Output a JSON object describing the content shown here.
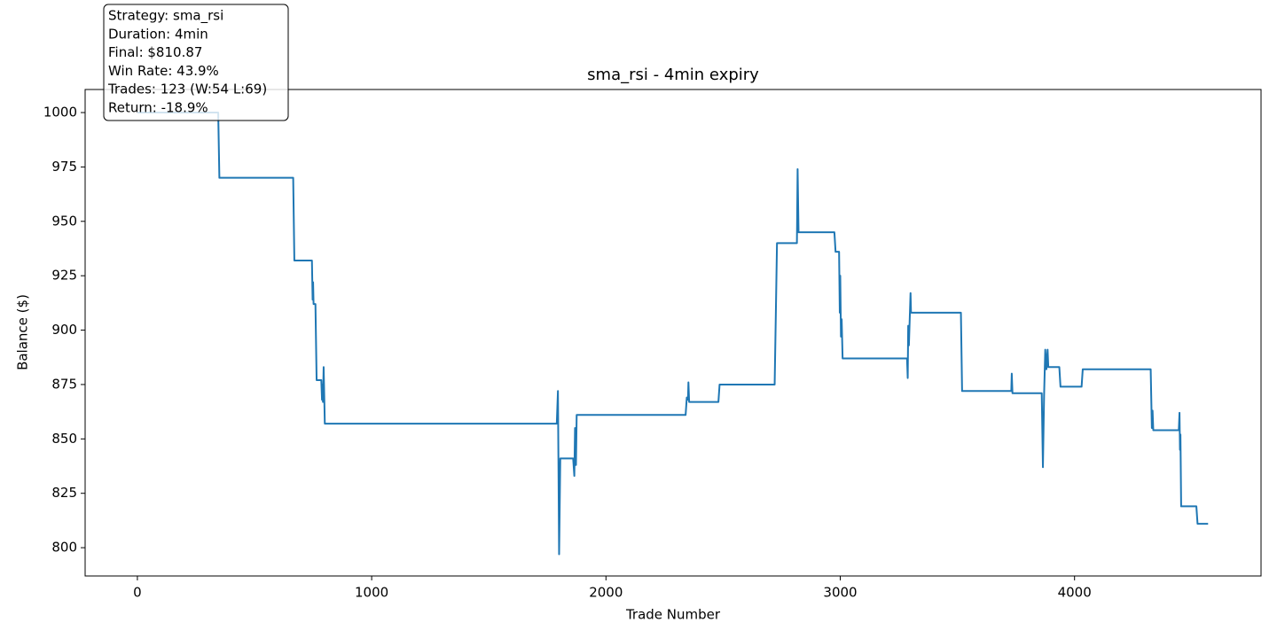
{
  "chart_data": {
    "type": "line",
    "title": "sma_rsi - 4min expiry",
    "xlabel": "Trade Number",
    "ylabel": "Balance ($)",
    "annotation": [
      "Strategy: sma_rsi",
      "Duration: 4min",
      "Final: $810.87",
      "Win Rate: 43.9%",
      "Trades: 123 (W:54 L:69)",
      "Return: -18.9%"
    ],
    "x": [
      0,
      345,
      350,
      665,
      670,
      745,
      748,
      750,
      752,
      760,
      765,
      785,
      788,
      790,
      792,
      795,
      800,
      1790,
      1795,
      1800,
      1805,
      1860,
      1865,
      1868,
      1872,
      1875,
      2340,
      2345,
      2350,
      2352,
      2355,
      2480,
      2485,
      2720,
      2725,
      2730,
      2815,
      2818,
      2822,
      2975,
      2980,
      2995,
      2998,
      3000,
      3003,
      3006,
      3010,
      3285,
      3288,
      3290,
      3293,
      3300,
      3302,
      3515,
      3520,
      3730,
      3732,
      3735,
      3860,
      3865,
      3870,
      3875,
      3880,
      3885,
      3888,
      3935,
      3940,
      4030,
      4035,
      4325,
      4330,
      4333,
      4336,
      4445,
      4448,
      4450,
      4452,
      4455,
      4520,
      4525,
      4570
    ],
    "series": [
      {
        "name": "Balance",
        "color": "#1f77b4",
        "values": [
          1000,
          1000,
          970,
          970,
          932,
          932,
          914,
          922,
          912,
          912,
          877,
          877,
          868,
          875,
          867,
          883,
          857,
          857,
          872,
          797,
          841,
          841,
          833,
          855,
          838,
          861,
          861,
          869,
          868,
          876,
          867,
          867,
          875,
          875,
          907,
          940,
          940,
          974,
          945,
          945,
          936,
          936,
          908,
          925,
          897,
          905,
          887,
          887,
          878,
          902,
          893,
          917,
          908,
          908,
          872,
          872,
          880,
          871,
          871,
          837,
          870,
          891,
          882,
          891,
          883,
          883,
          874,
          874,
          882,
          882,
          855,
          863,
          854,
          854,
          862,
          845,
          852,
          819,
          819,
          811,
          811
        ]
      }
    ],
    "xlim": [
      -223,
      4796
    ],
    "ylim": [
      787,
      1010.6
    ],
    "xticks": [
      0,
      1000,
      2000,
      3000,
      4000
    ],
    "yticks": [
      800,
      825,
      850,
      875,
      900,
      925,
      950,
      975,
      1000
    ]
  }
}
